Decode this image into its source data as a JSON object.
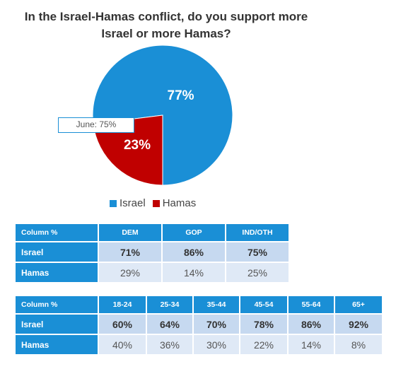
{
  "title_lines": [
    "In the Israel-Hamas conflict, do you support more",
    "Israel or more Hamas?"
  ],
  "chart_data": {
    "type": "pie",
    "title": "In the Israel-Hamas conflict, do you support more Israel or more Hamas?",
    "slices": [
      {
        "label": "Israel",
        "value": 77,
        "display": "77%",
        "color": "#1a8fd6"
      },
      {
        "label": "Hamas",
        "value": 23,
        "display": "23%",
        "color": "#c00000"
      }
    ],
    "annotation": "June: 75%",
    "legend": [
      "Israel",
      "Hamas"
    ],
    "legend_position": "bottom"
  },
  "table_party": {
    "headers": [
      "Column %",
      "DEM",
      "GOP",
      "IND/OTH"
    ],
    "rows": [
      {
        "label": "Israel",
        "values": [
          "71%",
          "86%",
          "75%"
        ]
      },
      {
        "label": "Hamas",
        "values": [
          "29%",
          "14%",
          "25%"
        ]
      }
    ]
  },
  "table_age": {
    "headers": [
      "Column %",
      "18-24",
      "25-34",
      "35-44",
      "45-54",
      "55-64",
      "65+"
    ],
    "rows": [
      {
        "label": "Israel",
        "values": [
          "60%",
          "64%",
          "70%",
          "78%",
          "86%",
          "92%"
        ]
      },
      {
        "label": "Hamas",
        "values": [
          "40%",
          "36%",
          "30%",
          "22%",
          "14%",
          "8%"
        ]
      }
    ]
  }
}
